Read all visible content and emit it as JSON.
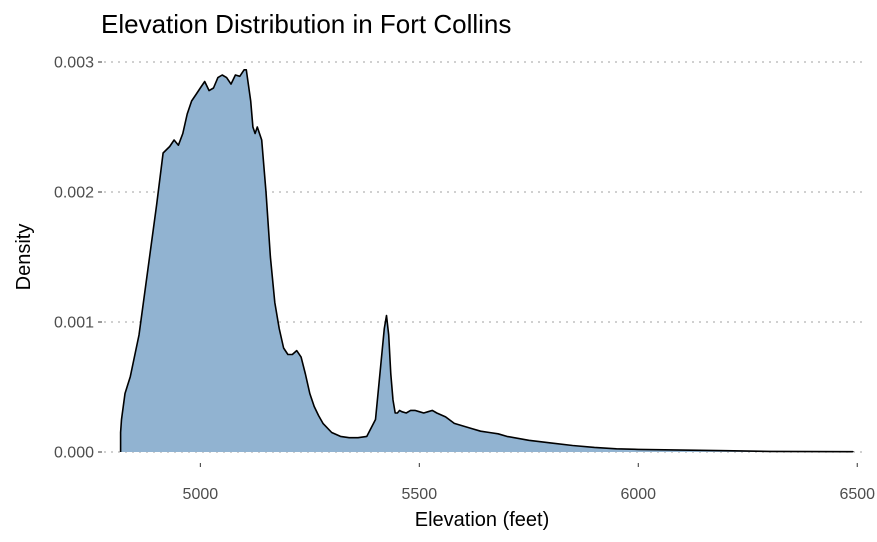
{
  "chart_data": {
    "type": "area",
    "title": "Elevation Distribution in Fort Collins",
    "xlabel": "Elevation (feet)",
    "ylabel": "Density",
    "xlim": [
      4780,
      6520
    ],
    "ylim": [
      0,
      0.003
    ],
    "x_ticks": [
      5000,
      5500,
      6000,
      6500
    ],
    "y_ticks": [
      0,
      0.001,
      0.002,
      0.003
    ],
    "x_tick_labels": [
      "5000",
      "5500",
      "6000",
      "6500"
    ],
    "y_tick_labels": [
      "0.000",
      "0.001",
      "0.002",
      "0.003"
    ],
    "grid": "horizontal-dotted",
    "fill_color": "#91b3d1",
    "line_color": "#000000",
    "series": [
      {
        "x": [
          4818,
          4820,
          4828,
          4840,
          4860,
          4880,
          4900,
          4915,
          4930,
          4940,
          4950,
          4960,
          4970,
          4980,
          4990,
          5000,
          5010,
          5020,
          5030,
          5040,
          5050,
          5060,
          5070,
          5080,
          5090,
          5100,
          5105,
          5110,
          5115,
          5120,
          5125,
          5130,
          5140,
          5150,
          5160,
          5170,
          5180,
          5190,
          5200,
          5210,
          5220,
          5230,
          5240,
          5250,
          5260,
          5270,
          5280,
          5300,
          5320,
          5340,
          5360,
          5380,
          5400,
          5410,
          5420,
          5425,
          5430,
          5435,
          5440,
          5445,
          5450,
          5455,
          5460,
          5470,
          5480,
          5490,
          5500,
          5510,
          5520,
          5530,
          5540,
          5560,
          5580,
          5600,
          5620,
          5640,
          5660,
          5680,
          5700,
          5750,
          5800,
          5850,
          5900,
          5950,
          6000,
          6100,
          6200,
          6300,
          6400,
          6490
        ],
        "y": [
          0.00015,
          0.00025,
          0.00045,
          0.00058,
          0.0009,
          0.0014,
          0.0019,
          0.0023,
          0.00235,
          0.0024,
          0.00236,
          0.00245,
          0.0026,
          0.0027,
          0.00275,
          0.0028,
          0.00285,
          0.00278,
          0.0028,
          0.00288,
          0.0029,
          0.00288,
          0.00283,
          0.0029,
          0.00289,
          0.00294,
          0.00294,
          0.00282,
          0.0027,
          0.0025,
          0.00245,
          0.0025,
          0.0024,
          0.002,
          0.0015,
          0.00115,
          0.00095,
          0.0008,
          0.00075,
          0.00075,
          0.00078,
          0.00073,
          0.0006,
          0.00045,
          0.00035,
          0.00028,
          0.00022,
          0.00015,
          0.00012,
          0.00011,
          0.00011,
          0.00012,
          0.00025,
          0.0006,
          0.00095,
          0.00105,
          0.0009,
          0.0006,
          0.0004,
          0.0003,
          0.0003,
          0.00032,
          0.00031,
          0.0003,
          0.00032,
          0.00032,
          0.00031,
          0.0003,
          0.00031,
          0.00032,
          0.0003,
          0.00027,
          0.00022,
          0.0002,
          0.00018,
          0.00016,
          0.00015,
          0.00014,
          0.00012,
          9e-05,
          7e-05,
          5e-05,
          3.5e-05,
          2.5e-05,
          2e-05,
          1.5e-05,
          1e-05,
          5e-06,
          3e-06,
          2e-06
        ]
      }
    ]
  }
}
